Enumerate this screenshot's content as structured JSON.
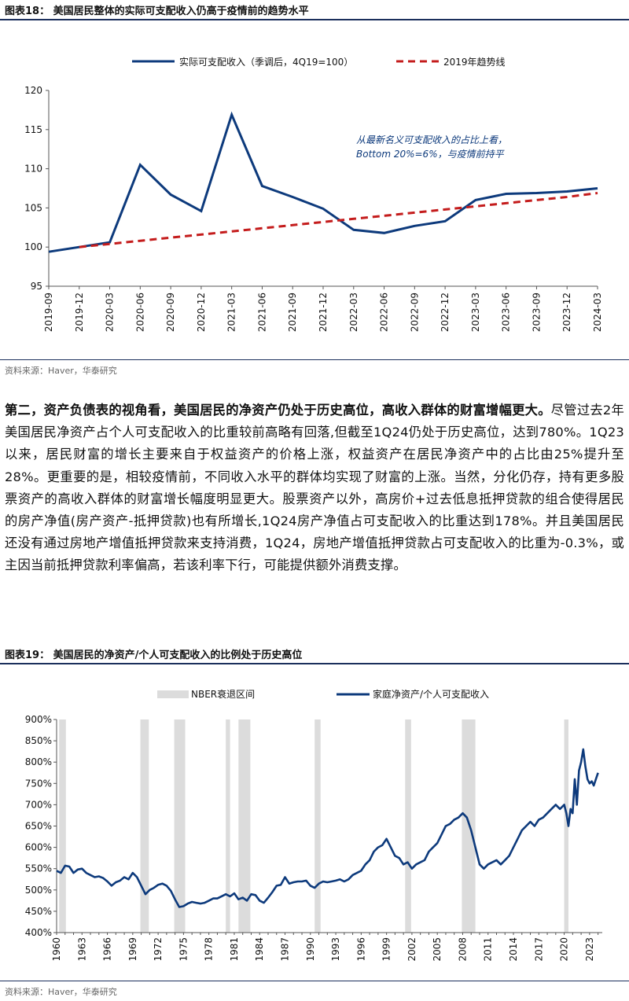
{
  "figure18": {
    "label": "图表18：",
    "title": "美国居民整体的实际可支配收入仍高于疫情前的趋势水平",
    "source": "资料来源：Haver，华泰研究",
    "legend": {
      "series1": "实际可支配收入（季调后，4Q19=100）",
      "series2": "2019年趋势线"
    },
    "annotation": [
      "从最新名义可支配收入的占比上看，",
      "Bottom 20%=6%，与疫情前持平"
    ],
    "colors": {
      "series1": "#0d3a7c",
      "series2": "#c41c1c"
    },
    "chart_data": {
      "type": "line",
      "x": [
        "2019-09",
        "2019-12",
        "2020-03",
        "2020-06",
        "2020-09",
        "2020-12",
        "2021-03",
        "2021-06",
        "2021-09",
        "2021-12",
        "2022-03",
        "2022-06",
        "2022-09",
        "2022-12",
        "2023-03",
        "2023-06",
        "2023-09",
        "2023-12",
        "2024-03"
      ],
      "yticks": [
        "95",
        "100",
        "105",
        "110",
        "115",
        "120"
      ],
      "ylim": [
        95,
        120
      ],
      "series": [
        {
          "name": "实际可支配收入（季调后，4Q19=100）",
          "values": [
            99.4,
            100.0,
            100.6,
            110.5,
            106.7,
            104.6,
            116.9,
            107.8,
            106.4,
            104.9,
            102.2,
            101.8,
            102.7,
            103.3,
            106.0,
            106.8,
            106.9,
            107.1,
            107.5
          ]
        },
        {
          "name": "2019年趋势线",
          "style": "dashed",
          "values": [
            null,
            100.0,
            100.4,
            100.8,
            101.2,
            101.6,
            102.0,
            102.4,
            102.8,
            103.2,
            103.6,
            104.0,
            104.4,
            104.8,
            105.2,
            105.6,
            106.0,
            106.4,
            106.9
          ]
        }
      ]
    }
  },
  "paragraph": {
    "bold": "第二，资产负债表的视角看，美国居民的净资产仍处于历史高位，高收入群体的财富增幅更大。",
    "body": "尽管过去2年美国居民净资产占个人可支配收入的比重较前高略有回落,但截至1Q24仍处于历史高位，达到780%。1Q23以来，居民财富的增长主要来自于权益资产的价格上涨，权益资产在居民净资产中的占比由25%提升至28%。更重要的是，相较疫情前，不同收入水平的群体均实现了财富的上涨。当然，分化仍存，持有更多股票资产的高收入群体的财富增长幅度明显更大。股票资产以外，高房价+过去低息抵押贷款的组合使得居民的房产净值(房产资产-抵押贷款)也有所增长,1Q24房产净值占可支配收入的比重达到178%。并且美国居民还没有通过房地产增值抵押贷款来支持消费，1Q24，房地产增值抵押贷款占可支配收入的比重为-0.3%，或主因当前抵押贷款利率偏高，若该利率下行，可能提供额外消费支撑。"
  },
  "figure19": {
    "label": "图表19：",
    "title": "美国居民的净资产/个人可支配收入的比例处于历史高位",
    "source": "资料来源：Haver，华泰研究",
    "legend": {
      "recession": "NBER衰退区间",
      "series1": "家庭净资产/个人可支配收入"
    },
    "colors": {
      "series1": "#0d3a7c",
      "recession": "#dcdcdc"
    },
    "chart_data": {
      "type": "line",
      "xticks": [
        "1960",
        "1963",
        "1966",
        "1969",
        "1972",
        "1975",
        "1978",
        "1981",
        "1984",
        "1987",
        "1990",
        "1993",
        "1996",
        "1999",
        "2002",
        "2005",
        "2008",
        "2011",
        "2014",
        "2017",
        "2020",
        "2023"
      ],
      "yticks": [
        "400%",
        "450%",
        "500%",
        "550%",
        "600%",
        "650%",
        "700%",
        "750%",
        "800%",
        "850%",
        "900%"
      ],
      "ylim": [
        400,
        900
      ],
      "xlim": [
        1960,
        2024.5
      ],
      "recessions": [
        [
          1960.3,
          1961.1
        ],
        [
          1969.9,
          1970.9
        ],
        [
          1973.9,
          1975.2
        ],
        [
          1980.0,
          1980.5
        ],
        [
          1981.5,
          1982.9
        ],
        [
          1990.5,
          1991.2
        ],
        [
          2001.2,
          2001.9
        ],
        [
          2007.9,
          2009.5
        ],
        [
          2020.0,
          2020.5
        ]
      ],
      "series": [
        {
          "name": "家庭净资产/个人可支配收入",
          "x": [
            1960,
            1960.5,
            1961,
            1961.5,
            1962,
            1962.5,
            1963,
            1963.5,
            1964,
            1964.5,
            1965,
            1965.5,
            1966,
            1966.5,
            1967,
            1967.5,
            1968,
            1968.5,
            1969,
            1969.5,
            1970,
            1970.5,
            1971,
            1971.5,
            1972,
            1972.5,
            1973,
            1973.5,
            1974,
            1974.5,
            1975,
            1975.5,
            1976,
            1976.5,
            1977,
            1977.5,
            1978,
            1978.5,
            1979,
            1979.5,
            1980,
            1980.5,
            1981,
            1981.5,
            1982,
            1982.5,
            1983,
            1983.5,
            1984,
            1984.5,
            1985,
            1985.5,
            1986,
            1986.5,
            1987,
            1987.5,
            1988,
            1988.5,
            1989,
            1989.5,
            1990,
            1990.5,
            1991,
            1991.5,
            1992,
            1992.5,
            1993,
            1993.5,
            1994,
            1994.5,
            1995,
            1995.5,
            1996,
            1996.5,
            1997,
            1997.5,
            1998,
            1998.5,
            1999,
            1999.5,
            2000,
            2000.5,
            2001,
            2001.5,
            2002,
            2002.5,
            2003,
            2003.5,
            2004,
            2004.5,
            2005,
            2005.5,
            2006,
            2006.5,
            2007,
            2007.5,
            2008,
            2008.5,
            2009,
            2009.5,
            2010,
            2010.5,
            2011,
            2011.5,
            2012,
            2012.5,
            2013,
            2013.5,
            2014,
            2014.5,
            2015,
            2015.5,
            2016,
            2016.5,
            2017,
            2017.5,
            2018,
            2018.5,
            2019,
            2019.5,
            2020,
            2020.25,
            2020.5,
            2020.75,
            2021,
            2021.25,
            2021.5,
            2021.75,
            2022,
            2022.25,
            2022.5,
            2022.75,
            2023,
            2023.25,
            2023.5,
            2023.75,
            2024
          ],
          "values": [
            545,
            540,
            557,
            555,
            540,
            548,
            550,
            540,
            535,
            530,
            532,
            528,
            520,
            510,
            518,
            522,
            530,
            525,
            540,
            530,
            510,
            490,
            500,
            505,
            512,
            515,
            510,
            498,
            478,
            460,
            462,
            468,
            472,
            470,
            468,
            470,
            475,
            480,
            480,
            485,
            490,
            485,
            492,
            478,
            482,
            475,
            490,
            488,
            475,
            470,
            482,
            495,
            510,
            512,
            530,
            515,
            518,
            520,
            520,
            522,
            510,
            505,
            515,
            520,
            518,
            520,
            522,
            525,
            520,
            525,
            535,
            540,
            545,
            560,
            570,
            590,
            600,
            605,
            620,
            600,
            580,
            575,
            560,
            565,
            550,
            560,
            565,
            570,
            590,
            600,
            610,
            630,
            650,
            655,
            665,
            670,
            680,
            670,
            640,
            600,
            560,
            550,
            560,
            565,
            570,
            560,
            570,
            580,
            600,
            620,
            640,
            650,
            660,
            650,
            665,
            670,
            680,
            690,
            700,
            690,
            700,
            680,
            650,
            690,
            680,
            760,
            700,
            780,
            800,
            830,
            790,
            760,
            750,
            755,
            745,
            760,
            775
          ]
        }
      ]
    }
  }
}
